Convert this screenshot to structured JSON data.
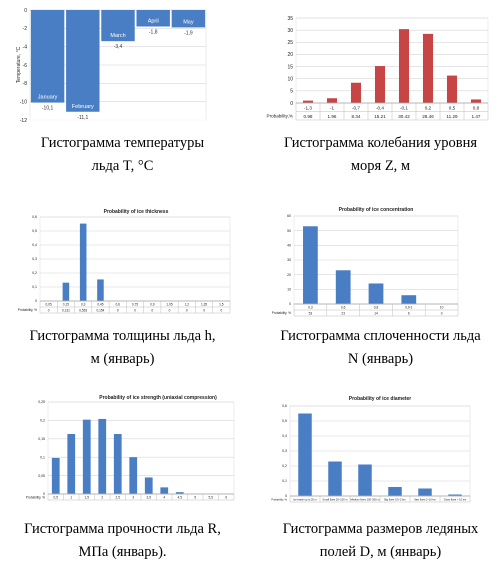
{
  "colors": {
    "blue": "#4a7ec4",
    "red": "#c84545",
    "grid": "#d6d6d6",
    "axis": "#999999",
    "text": "#222222"
  },
  "captions": {
    "p1": {
      "line1": "Гистограмма температуры",
      "line2": "льда T, °C"
    },
    "p2": {
      "line1": "Гистограмма колебания уровня",
      "line2": "моря Z, м"
    },
    "p3": {
      "line1": "Гистограмма толщины льда h,",
      "line2": "м (январь)"
    },
    "p4": {
      "line1": "Гистограмма сплоченности льда",
      "line2": "N (январь)"
    },
    "p5": {
      "line1": "Гистограмма прочности льда R,",
      "line2": "МПа (январь)."
    },
    "p6": {
      "line1": "Гистограмма размеров ледяных",
      "line2": "полей D, м (январь)"
    }
  },
  "chart_data": [
    {
      "id": "temperature",
      "type": "bar",
      "title": "",
      "xlabel": "",
      "ylabel": "Temperature, °C",
      "categories": [
        "January",
        "February",
        "March",
        "April",
        "May"
      ],
      "values": [
        -10.1,
        -11.1,
        -3.4,
        -1.8,
        -1.9
      ],
      "value_labels": [
        "-10,1",
        "-11,1",
        "-3,4",
        "-1,8",
        "-1,9"
      ],
      "yticks": [
        "-12",
        "-10",
        "-8",
        "-6",
        "-4",
        "-2",
        "0"
      ],
      "ylim": [
        -12,
        0
      ],
      "grid": true,
      "color": "#4a7ec4"
    },
    {
      "id": "sea_level",
      "type": "bar",
      "title": "",
      "xlabel": "",
      "ylabel": "",
      "categories": [
        "-1,3",
        "-1",
        "-0,7",
        "-0,4",
        "-0,1",
        "0,2",
        "0,5",
        "0,8"
      ],
      "values": [
        0.98,
        1.96,
        8.34,
        15.21,
        30.42,
        28.46,
        11.29,
        1.47
      ],
      "table_header": "Probability,%",
      "table_values": [
        "0.98",
        "1.96",
        "8.34",
        "15.21",
        "30.42",
        "28.46",
        "11.29",
        "1.47"
      ],
      "yticks": [
        "0",
        "5",
        "10",
        "15",
        "20",
        "25",
        "30",
        "35"
      ],
      "ylim": [
        0,
        35
      ],
      "grid": true,
      "color": "#c84545"
    },
    {
      "id": "ice_thickness",
      "type": "bar",
      "title": "Probability of ice thickness",
      "xlabel": "",
      "ylabel": "",
      "categories": [
        "0,05",
        "0,15",
        "0,3",
        "0,45",
        "0,6",
        "0,75",
        "0,9",
        "1,05",
        "1,2",
        "1,35",
        "1,5"
      ],
      "values": [
        0,
        0.131,
        0.553,
        0.154,
        0,
        0,
        0,
        0,
        0,
        0,
        0
      ],
      "table_header": "Probability, %",
      "table_values": [
        "0",
        "0,131",
        "0,553",
        "0,154",
        "0",
        "0",
        "0",
        "0",
        "0",
        "0",
        "0"
      ],
      "yticks": [
        "0",
        "0,1",
        "0,2",
        "0,3",
        "0,4",
        "0,5",
        "0,6"
      ],
      "ylim": [
        0,
        0.6
      ],
      "grid": true,
      "color": "#4a7ec4"
    },
    {
      "id": "ice_concentration",
      "type": "bar",
      "title": "Probability of ice concentration",
      "xlabel": "",
      "ylabel": "",
      "categories": [
        "0,3",
        "0,6",
        "0,8",
        "0,9-1",
        "10"
      ],
      "values": [
        53,
        23,
        14,
        6,
        0
      ],
      "table_header": "Probability, %",
      "table_values": [
        "53",
        "23",
        "14",
        "6",
        "0"
      ],
      "yticks": [
        "0",
        "10",
        "20",
        "30",
        "40",
        "50",
        "60"
      ],
      "ylim": [
        0,
        60
      ],
      "grid": true,
      "color": "#4a7ec4"
    },
    {
      "id": "ice_strength",
      "type": "bar",
      "title": "Probability of ice strength (uniaxial compression)",
      "xlabel": "",
      "ylabel": "",
      "categories": [
        "0,5",
        "1",
        "1,5",
        "2",
        "2,5",
        "3",
        "3,5",
        "4",
        "4,5",
        "5",
        "5,5",
        "6"
      ],
      "values": [
        0.098,
        0.163,
        0.202,
        0.204,
        0.163,
        0.1,
        0.045,
        0.018,
        0.005,
        0,
        0,
        0
      ],
      "table_header": "Probability, %",
      "yticks": [
        "0",
        "0,05",
        "0,1",
        "0,15",
        "0,2",
        "0,25"
      ],
      "ylim": [
        0,
        0.25
      ],
      "grid": true,
      "color": "#4a7ec4"
    },
    {
      "id": "ice_diameter",
      "type": "bar",
      "title": "Probability of ice diameter",
      "xlabel": "",
      "ylabel": "",
      "categories": [
        "Ice brash up to 20 m",
        "Small floes 20–100 m",
        "Medium floes 100–500 m",
        "Big floes 0.5–2 km",
        "Vast floes 2–10 km",
        "Giant floes > 10 km"
      ],
      "values": [
        0.55,
        0.23,
        0.21,
        0.06,
        0.05,
        0.01
      ],
      "table_header": "Probability, %",
      "yticks": [
        "0",
        "0,1",
        "0,2",
        "0,3",
        "0,4",
        "0,5",
        "0,6"
      ],
      "ylim": [
        0,
        0.6
      ],
      "grid": true,
      "color": "#4a7ec4"
    }
  ]
}
